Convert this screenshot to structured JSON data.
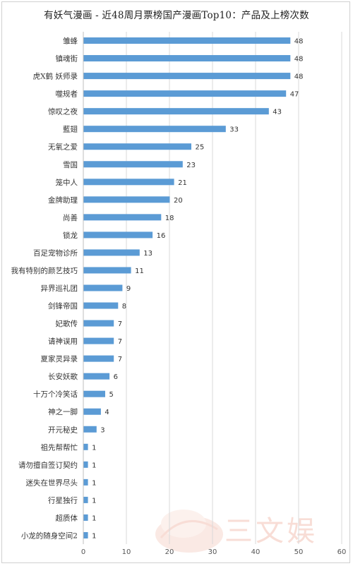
{
  "title": "有妖气漫画 - 近48周月票榜国产漫画Top10：产品及上榜次数",
  "watermark_text": "三文娱",
  "chart_data": {
    "type": "bar",
    "orientation": "horizontal",
    "title": "有妖气漫画 - 近48周月票榜国产漫画Top10：产品及上榜次数",
    "xlabel": "",
    "ylabel": "",
    "xlim": [
      0,
      60
    ],
    "xticks": [
      0,
      10,
      20,
      30,
      40,
      50,
      60
    ],
    "grid": true,
    "bar_color": "#5b9bd5",
    "categories": [
      "雏蜂",
      "镇魂街",
      "虎X鹤 妖师录",
      "噬规者",
      "惊叹之夜",
      "藍翅",
      "无氧之爱",
      "雪国",
      "笼中人",
      "金牌助理",
      "尚善",
      "锁龙",
      "百足宠物诊所",
      "我有特别的颜艺技巧",
      "异界巡礼团",
      "剑锋帝国",
      "妃歌传",
      "请神误用",
      "夏家灵异录",
      "长安妖歌",
      "十万个冷笑话",
      "神之一脚",
      "开元秘史",
      "祖先帮帮忙",
      "请勿擅自签订契约",
      "迷失在世界尽头",
      "行星独行",
      "超质体",
      "小龙的随身空间2"
    ],
    "values": [
      48,
      48,
      48,
      47,
      43,
      33,
      25,
      23,
      21,
      20,
      18,
      16,
      13,
      11,
      9,
      8,
      7,
      7,
      7,
      6,
      5,
      4,
      3,
      1,
      1,
      1,
      1,
      1,
      1
    ]
  }
}
